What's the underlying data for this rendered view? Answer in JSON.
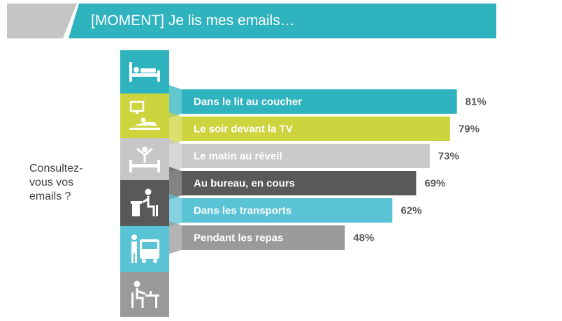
{
  "header": {
    "title": "[MOMENT] Je lis mes emails…"
  },
  "question": {
    "lines": [
      "Consultez-",
      "vous vos",
      "emails ?"
    ]
  },
  "icons": [
    {
      "name": "bed-icon",
      "color": "#2fb3bf"
    },
    {
      "name": "tv-lounge-icon",
      "color": "#cdd43e"
    },
    {
      "name": "wake-up-icon",
      "color": "#c7c7c7"
    },
    {
      "name": "desk-work-icon",
      "color": "#595959"
    },
    {
      "name": "bus-icon",
      "color": "#5bc3d6"
    },
    {
      "name": "meal-icon",
      "color": "#9a9a9a"
    }
  ],
  "chart_data": {
    "type": "bar",
    "orientation": "horizontal",
    "categories": [
      "Dans le lit au coucher",
      "Le soir devant la TV",
      "Le matin au réveil",
      "Au bureau, en cours",
      "Dans les transports",
      "Pendant les repas"
    ],
    "values": [
      81,
      79,
      73,
      69,
      62,
      48
    ],
    "data_labels": [
      "81%",
      "79%",
      "73%",
      "69%",
      "62%",
      "48%"
    ],
    "colors": [
      "#2fb3bf",
      "#cdd43e",
      "#cacaca",
      "#595959",
      "#5bc3d6",
      "#9a9a9a"
    ],
    "label_colors": [
      "#ffffff",
      "#ffffff",
      "#ffffff",
      "#ffffff",
      "#ffffff",
      "#ffffff"
    ],
    "xlim": [
      0,
      100
    ],
    "grid": false
  }
}
